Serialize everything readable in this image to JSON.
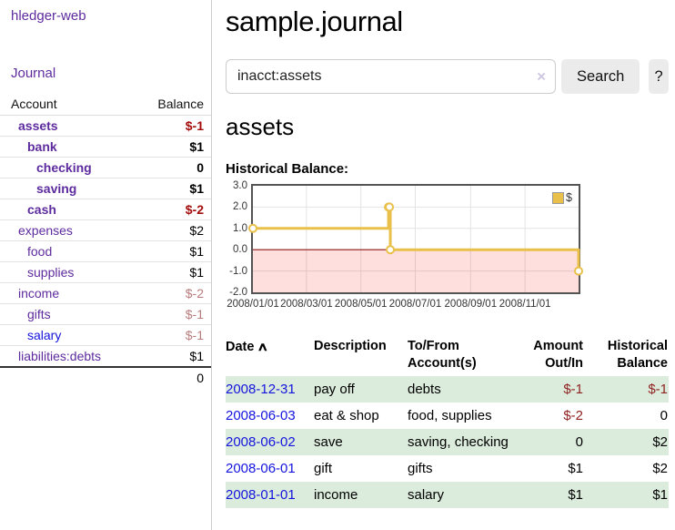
{
  "app": {
    "title": "hledger-web"
  },
  "sidebar": {
    "journal_link": "Journal",
    "accounts": {
      "col_account": "Account",
      "col_balance": "Balance",
      "rows": [
        {
          "name": "assets",
          "balance": "$-1"
        },
        {
          "name": "bank",
          "balance": "$1"
        },
        {
          "name": "checking",
          "balance": "0"
        },
        {
          "name": "saving",
          "balance": "$1"
        },
        {
          "name": "cash",
          "balance": "$-2"
        },
        {
          "name": "expenses",
          "balance": "$2"
        },
        {
          "name": "food",
          "balance": "$1"
        },
        {
          "name": "supplies",
          "balance": "$1"
        },
        {
          "name": "income",
          "balance": "$-2"
        },
        {
          "name": "gifts",
          "balance": "$-1"
        },
        {
          "name": "salary",
          "balance": "$-1"
        },
        {
          "name": "liabilities:debts",
          "balance": "$1"
        }
      ],
      "total": "0"
    }
  },
  "main": {
    "title": "sample.journal",
    "search": {
      "value": "inacct:assets",
      "clear": "×",
      "search_button": "Search",
      "help_button": "?"
    },
    "heading": "assets",
    "chart_title": "Historical Balance:"
  },
  "chart_data": {
    "type": "line",
    "title": "Historical Balance",
    "step": true,
    "x": [
      "2008-01-01",
      "2008-06-01",
      "2008-06-02",
      "2008-06-03",
      "2008-12-31"
    ],
    "values": [
      1,
      2,
      2,
      0,
      -1
    ],
    "xlim": [
      "2008-01-01",
      "2008-12-31"
    ],
    "ylim": [
      -2,
      3
    ],
    "x_ticks": [
      "2008/01/01",
      "2008/03/01",
      "2008/05/01",
      "2008/07/01",
      "2008/09/01",
      "2008/11/01"
    ],
    "y_ticks": [
      "3.0",
      "2.0",
      "1.0",
      "0.0",
      "-1.0",
      "-2.0"
    ],
    "grid": true,
    "legend": [
      {
        "label": "$",
        "color": "#E8C04A"
      }
    ],
    "legend_position": "top-right",
    "series_color": "#E8C04A",
    "negative_region_color": "rgba(255,0,0,0.13)",
    "zero_line_color": "#8B1515"
  },
  "register": {
    "headers": {
      "date": "Date",
      "sort_icon": "∧",
      "description": "Description",
      "tofrom": "To/From Account(s)",
      "amount": "Amount Out/In",
      "balance": "Historical Balance"
    },
    "rows": [
      {
        "date": "2008-12-31",
        "description": "pay off",
        "tofrom": "debts",
        "amount": "$-1",
        "balance": "$-1"
      },
      {
        "date": "2008-06-03",
        "description": "eat & shop",
        "tofrom": "food, supplies",
        "amount": "$-2",
        "balance": "0"
      },
      {
        "date": "2008-06-02",
        "description": "save",
        "tofrom": "saving, checking",
        "amount": "0",
        "balance": "$2"
      },
      {
        "date": "2008-06-01",
        "description": "gift",
        "tofrom": "gifts",
        "amount": "$1",
        "balance": "$2"
      },
      {
        "date": "2008-01-01",
        "description": "income",
        "tofrom": "salary",
        "amount": "$1",
        "balance": "$1"
      }
    ]
  }
}
